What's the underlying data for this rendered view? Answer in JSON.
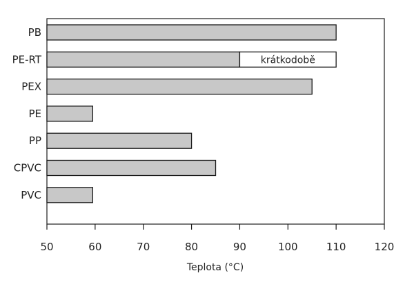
{
  "chart_data": {
    "type": "bar",
    "orientation": "horizontal",
    "title": "",
    "xlabel": "Teplota (°C)",
    "ylabel": "",
    "xlim": [
      50,
      120
    ],
    "xticks": [
      50,
      60,
      70,
      80,
      90,
      100,
      110,
      120
    ],
    "grid": false,
    "categories": [
      "PB",
      "PE-RT",
      "PEX",
      "PE",
      "PP",
      "CPVC",
      "PVC"
    ],
    "values": [
      110,
      90,
      105,
      59.5,
      80,
      85,
      59.5
    ],
    "extensions": [
      {
        "category": "PE-RT",
        "from": 90,
        "to": 110,
        "label": "krátkodobě"
      }
    ],
    "colors": {
      "bar": "#c8c8c8",
      "extension": "#ffffff",
      "stroke": "#1a1a1a"
    }
  }
}
